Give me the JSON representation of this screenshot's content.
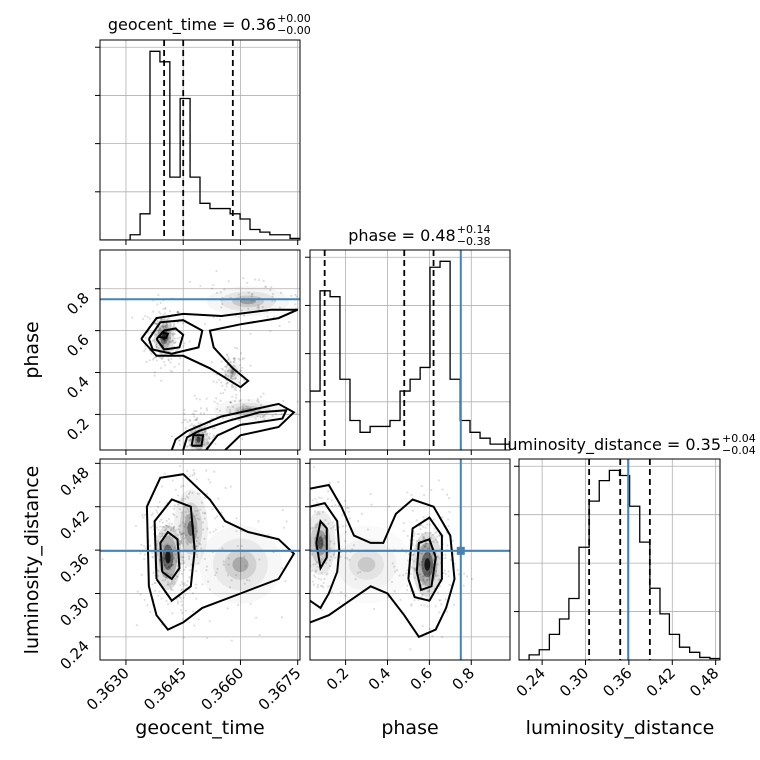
{
  "chart_data": {
    "type": "corner",
    "parameters": [
      "geocent_time",
      "phase",
      "luminosity_distance"
    ],
    "truth_color": "#4682b4",
    "truths": {
      "phase": 0.75,
      "luminosity_distance": 0.359
    },
    "titles": {
      "geocent_time": {
        "label": "geocent_time = 0.36",
        "plus": "+0.00",
        "minus": "−0.00"
      },
      "phase": {
        "label": "phase = 0.48",
        "plus": "+0.14",
        "minus": "−0.38"
      },
      "luminosity_distance": {
        "label": "luminosity_distance = 0.35",
        "plus": "+0.04",
        "minus": "−0.04"
      }
    },
    "axes": {
      "geocent_time": {
        "label": "geocent_time",
        "range": [
          0.36232,
          0.36756
        ],
        "ticks": [
          0.363,
          0.3645,
          0.366,
          0.3675
        ],
        "tick_labels": [
          "0.3630",
          "0.3645",
          "0.3660",
          "0.3675"
        ]
      },
      "phase": {
        "label": "phase",
        "range": [
          0.03,
          0.985
        ],
        "ticks": [
          0.2,
          0.4,
          0.6,
          0.8
        ],
        "tick_labels": [
          "0.2",
          "0.4",
          "0.6",
          "0.8"
        ]
      },
      "luminosity_distance": {
        "label": "luminosity_distance",
        "range": [
          0.208,
          0.486
        ],
        "ticks": [
          0.24,
          0.3,
          0.36,
          0.42,
          0.48
        ],
        "tick_labels": [
          "0.24",
          "0.30",
          "0.36",
          "0.42",
          "0.48"
        ]
      }
    },
    "histograms": {
      "geocent_time": {
        "bins": [
          0.36232,
          0.36258,
          0.36284,
          0.36311,
          0.36337,
          0.36363,
          0.36389,
          0.36415,
          0.36442,
          0.36468,
          0.36494,
          0.3652,
          0.36546,
          0.36573,
          0.36599,
          0.36625,
          0.36651,
          0.36677,
          0.36704,
          0.3673,
          0.36756
        ],
        "counts": [
          0,
          0,
          0,
          1,
          5,
          36,
          34,
          12,
          27,
          12,
          7,
          6,
          6,
          5,
          4,
          2,
          1.5,
          1,
          1,
          0.3
        ]
      },
      "phase": {
        "bins": [
          0.03,
          0.078,
          0.126,
          0.173,
          0.221,
          0.269,
          0.317,
          0.364,
          0.412,
          0.46,
          0.508,
          0.556,
          0.603,
          0.651,
          0.699,
          0.747,
          0.794,
          0.842,
          0.89,
          0.938,
          0.985
        ],
        "counts": [
          10,
          27,
          26,
          12,
          5,
          3,
          4,
          4,
          5,
          10,
          12,
          14,
          31,
          32,
          12,
          5,
          3,
          2,
          1,
          1
        ]
      },
      "luminosity_distance": {
        "bins": [
          0.208,
          0.222,
          0.236,
          0.25,
          0.264,
          0.277,
          0.291,
          0.305,
          0.319,
          0.333,
          0.347,
          0.361,
          0.375,
          0.389,
          0.403,
          0.416,
          0.43,
          0.444,
          0.458,
          0.472,
          0.486
        ],
        "counts": [
          0,
          1,
          2,
          5,
          8,
          12,
          22,
          31,
          35,
          37,
          36,
          30,
          23,
          14,
          9,
          5,
          2.5,
          1.5,
          0.5,
          0.3
        ]
      }
    },
    "quantiles": {
      "geocent_time": [
        0.364,
        0.3645,
        0.3658
      ],
      "phase": [
        0.1,
        0.48,
        0.62
      ],
      "luminosity_distance": [
        0.305,
        0.348,
        0.389
      ]
    },
    "contours_2d": {
      "phase_vs_geocent_time": [
        [
          [
            0.3638,
            0.56
          ],
          [
            0.364,
            0.6
          ],
          [
            0.3643,
            0.61
          ],
          [
            0.3645,
            0.58
          ],
          [
            0.3644,
            0.52
          ],
          [
            0.364,
            0.51
          ],
          [
            0.3638,
            0.56
          ]
        ],
        [
          [
            0.3636,
            0.56
          ],
          [
            0.3639,
            0.64
          ],
          [
            0.3645,
            0.65
          ],
          [
            0.365,
            0.6
          ],
          [
            0.3649,
            0.52
          ],
          [
            0.3642,
            0.49
          ],
          [
            0.3637,
            0.51
          ],
          [
            0.3636,
            0.56
          ]
        ],
        [
          [
            0.3634,
            0.56
          ],
          [
            0.3638,
            0.66
          ],
          [
            0.3645,
            0.68
          ],
          [
            0.3655,
            0.67
          ],
          [
            0.3668,
            0.7
          ],
          [
            0.3675,
            0.7
          ],
          [
            0.367,
            0.66
          ],
          [
            0.366,
            0.63
          ],
          [
            0.3652,
            0.6
          ],
          [
            0.3653,
            0.52
          ],
          [
            0.3658,
            0.42
          ],
          [
            0.3662,
            0.36
          ],
          [
            0.366,
            0.33
          ],
          [
            0.3652,
            0.42
          ],
          [
            0.3645,
            0.48
          ],
          [
            0.3638,
            0.48
          ],
          [
            0.3634,
            0.56
          ]
        ],
        [
          [
            0.3645,
            0.03
          ],
          [
            0.3646,
            0.09
          ],
          [
            0.3649,
            0.12
          ],
          [
            0.3657,
            0.17
          ],
          [
            0.3665,
            0.21
          ],
          [
            0.3672,
            0.22
          ],
          [
            0.3671,
            0.18
          ],
          [
            0.366,
            0.15
          ],
          [
            0.3654,
            0.1
          ],
          [
            0.3651,
            0.03
          ]
        ],
        [
          [
            0.3642,
            0.03
          ],
          [
            0.3643,
            0.08
          ],
          [
            0.3646,
            0.12
          ],
          [
            0.3655,
            0.19
          ],
          [
            0.367,
            0.25
          ],
          [
            0.3674,
            0.21
          ],
          [
            0.367,
            0.14
          ],
          [
            0.366,
            0.1
          ],
          [
            0.3656,
            0.03
          ]
        ],
        [
          [
            0.36472,
            0.05
          ],
          [
            0.36477,
            0.1
          ],
          [
            0.36502,
            0.1
          ],
          [
            0.36498,
            0.05
          ],
          [
            0.36472,
            0.05
          ]
        ],
        [
          [
            0.36385,
            0.57
          ],
          [
            0.36395,
            0.59
          ],
          [
            0.3641,
            0.585
          ],
          [
            0.36405,
            0.565
          ],
          [
            0.36385,
            0.57
          ]
        ]
      ],
      "luminosity_distance_vs_geocent_time": [
        [
          [
            0.36395,
            0.33
          ],
          [
            0.3639,
            0.37
          ],
          [
            0.3641,
            0.385
          ],
          [
            0.36435,
            0.375
          ],
          [
            0.3644,
            0.335
          ],
          [
            0.3642,
            0.32
          ],
          [
            0.36395,
            0.33
          ]
        ],
        [
          [
            0.3638,
            0.32
          ],
          [
            0.36375,
            0.4
          ],
          [
            0.3642,
            0.43
          ],
          [
            0.3647,
            0.42
          ],
          [
            0.3648,
            0.36
          ],
          [
            0.3647,
            0.31
          ],
          [
            0.3642,
            0.29
          ],
          [
            0.3638,
            0.32
          ]
        ],
        [
          [
            0.3636,
            0.31
          ],
          [
            0.36355,
            0.42
          ],
          [
            0.3639,
            0.46
          ],
          [
            0.3645,
            0.465
          ],
          [
            0.3652,
            0.43
          ],
          [
            0.3656,
            0.4
          ],
          [
            0.3662,
            0.385
          ],
          [
            0.367,
            0.375
          ],
          [
            0.3674,
            0.355
          ],
          [
            0.367,
            0.32
          ],
          [
            0.366,
            0.3
          ],
          [
            0.365,
            0.28
          ],
          [
            0.3645,
            0.26
          ],
          [
            0.3641,
            0.25
          ],
          [
            0.3638,
            0.27
          ],
          [
            0.3636,
            0.31
          ]
        ]
      ],
      "luminosity_distance_vs_phase": [
        [
          [
            0.06,
            0.37
          ],
          [
            0.08,
            0.4
          ],
          [
            0.11,
            0.39
          ],
          [
            0.11,
            0.35
          ],
          [
            0.08,
            0.335
          ],
          [
            0.06,
            0.37
          ]
        ],
        [
          [
            0.54,
            0.33
          ],
          [
            0.55,
            0.37
          ],
          [
            0.6,
            0.375
          ],
          [
            0.63,
            0.35
          ],
          [
            0.61,
            0.31
          ],
          [
            0.56,
            0.305
          ],
          [
            0.54,
            0.33
          ]
        ],
        [
          [
            0.5,
            0.32
          ],
          [
            0.52,
            0.39
          ],
          [
            0.6,
            0.405
          ],
          [
            0.66,
            0.38
          ],
          [
            0.66,
            0.32
          ],
          [
            0.6,
            0.29
          ],
          [
            0.53,
            0.295
          ],
          [
            0.5,
            0.32
          ]
        ],
        [
          [
            0.03,
            0.42
          ],
          [
            0.1,
            0.425
          ],
          [
            0.16,
            0.4
          ],
          [
            0.17,
            0.36
          ],
          [
            0.16,
            0.33
          ],
          [
            0.12,
            0.3
          ],
          [
            0.08,
            0.28
          ],
          [
            0.03,
            0.29
          ]
        ],
        [
          [
            0.03,
            0.445
          ],
          [
            0.12,
            0.45
          ],
          [
            0.18,
            0.42
          ],
          [
            0.24,
            0.38
          ],
          [
            0.32,
            0.37
          ],
          [
            0.38,
            0.37
          ],
          [
            0.44,
            0.41
          ],
          [
            0.52,
            0.43
          ],
          [
            0.62,
            0.42
          ],
          [
            0.7,
            0.38
          ],
          [
            0.72,
            0.32
          ],
          [
            0.68,
            0.28
          ],
          [
            0.63,
            0.25
          ],
          [
            0.55,
            0.24
          ],
          [
            0.48,
            0.27
          ],
          [
            0.4,
            0.3
          ],
          [
            0.32,
            0.31
          ],
          [
            0.22,
            0.29
          ],
          [
            0.12,
            0.27
          ],
          [
            0.03,
            0.26
          ]
        ]
      ]
    },
    "density_blobs_2d": {
      "phase_vs_geocent_time": [
        {
          "x": 0.364,
          "y": 0.57,
          "sx": 0.00015,
          "sy": 0.05,
          "w": 0.9
        },
        {
          "x": 0.3649,
          "y": 0.08,
          "sx": 0.00015,
          "sy": 0.04,
          "w": 0.7
        },
        {
          "x": 0.3658,
          "y": 0.4,
          "sx": 0.00012,
          "sy": 0.03,
          "w": 0.35
        },
        {
          "x": 0.3662,
          "y": 0.74,
          "sx": 0.0006,
          "sy": 0.04,
          "w": 0.3
        },
        {
          "x": 0.3662,
          "y": 0.22,
          "sx": 0.0005,
          "sy": 0.03,
          "w": 0.3
        }
      ],
      "luminosity_distance_vs_geocent_time": [
        {
          "x": 0.3641,
          "y": 0.35,
          "sx": 0.0002,
          "sy": 0.025,
          "w": 1.0
        },
        {
          "x": 0.3647,
          "y": 0.39,
          "sx": 0.00025,
          "sy": 0.03,
          "w": 0.5
        },
        {
          "x": 0.366,
          "y": 0.34,
          "sx": 0.0006,
          "sy": 0.03,
          "w": 0.25
        }
      ],
      "luminosity_distance_vs_phase": [
        {
          "x": 0.59,
          "y": 0.34,
          "sx": 0.04,
          "sy": 0.025,
          "w": 1.0
        },
        {
          "x": 0.08,
          "y": 0.37,
          "sx": 0.04,
          "sy": 0.025,
          "w": 0.6
        },
        {
          "x": 0.3,
          "y": 0.34,
          "sx": 0.12,
          "sy": 0.03,
          "w": 0.15
        }
      ]
    }
  }
}
